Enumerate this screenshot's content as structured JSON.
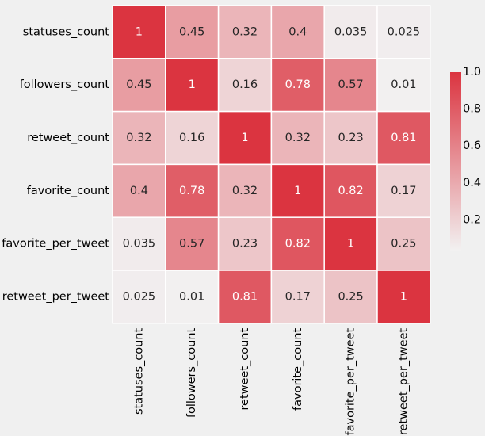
{
  "chart_data": {
    "type": "heatmap",
    "title": "",
    "xlabel": "",
    "ylabel": "",
    "rows": [
      "statuses_count",
      "followers_count",
      "retweet_count",
      "favorite_count",
      "favorite_per_tweet",
      "retweet_per_tweet"
    ],
    "columns": [
      "statuses_count",
      "followers_count",
      "retweet_count",
      "favorite_count",
      "favorite_per_tweet",
      "retweet_per_tweet"
    ],
    "values": [
      [
        1,
        0.45,
        0.32,
        0.4,
        0.035,
        0.025
      ],
      [
        0.45,
        1,
        0.16,
        0.78,
        0.57,
        0.01
      ],
      [
        0.32,
        0.16,
        1,
        0.32,
        0.23,
        0.81
      ],
      [
        0.4,
        0.78,
        0.32,
        1,
        0.82,
        0.17
      ],
      [
        0.035,
        0.57,
        0.23,
        0.82,
        1,
        0.25
      ],
      [
        0.025,
        0.01,
        0.81,
        0.17,
        0.25,
        1
      ]
    ],
    "value_labels": [
      [
        "1",
        "0.45",
        "0.32",
        "0.4",
        "0.035",
        "0.025"
      ],
      [
        "0.45",
        "1",
        "0.16",
        "0.78",
        "0.57",
        "0.01"
      ],
      [
        "0.32",
        "0.16",
        "1",
        "0.32",
        "0.23",
        "0.81"
      ],
      [
        "0.4",
        "0.78",
        "0.32",
        "1",
        "0.82",
        "0.17"
      ],
      [
        "0.035",
        "0.57",
        "0.23",
        "0.82",
        "1",
        "0.25"
      ],
      [
        "0.025",
        "0.01",
        "0.81",
        "0.17",
        "0.25",
        "1"
      ]
    ],
    "colorbar": {
      "range": [
        0,
        1
      ],
      "ticks": [
        0.2,
        0.4,
        0.6,
        0.8,
        1.0
      ],
      "tick_labels": [
        "0.2",
        "0.4",
        "0.6",
        "0.8",
        "1.0"
      ],
      "color_low": "#f2f2f2",
      "color_high": "#db3440"
    },
    "grid": false,
    "cell_border_color": "#ffffff",
    "background_color": "#f0f0f0"
  }
}
